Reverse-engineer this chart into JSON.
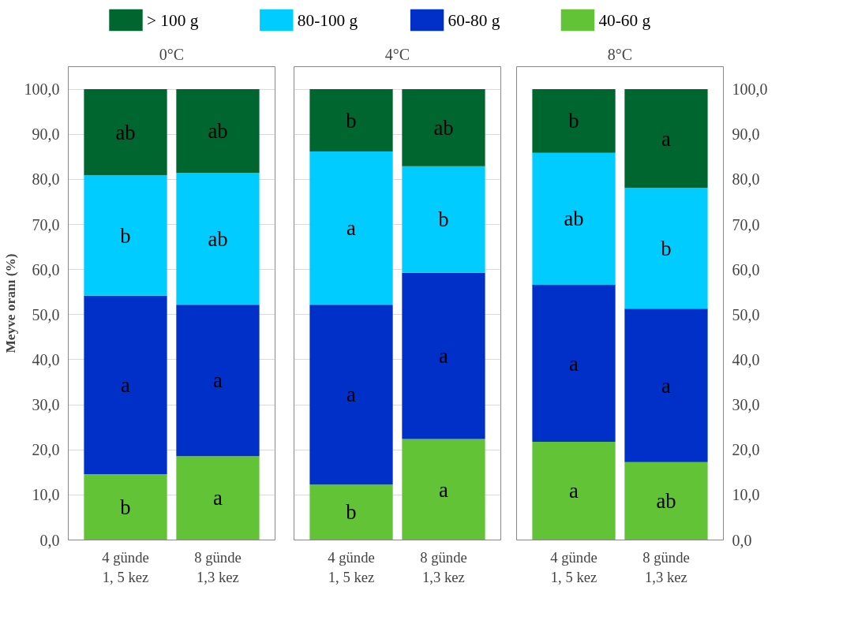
{
  "chart_data": [
    {
      "type": "bar",
      "stacked": true,
      "title": "0°C",
      "ylabel": "Meyve oranı (%)",
      "legend": "top",
      "grid": "y",
      "categories": [
        "4 günde\n1, 5 kez",
        "8 günde\n1,3 kez"
      ],
      "ylim": [
        0,
        105
      ],
      "yticks": [
        {
          "value": 0,
          "label": "0,0"
        },
        {
          "value": 10,
          "label": "10,0"
        },
        {
          "value": 20,
          "label": "20,0"
        },
        {
          "value": 30,
          "label": "30,0"
        },
        {
          "value": 40,
          "label": "40,0"
        },
        {
          "value": 50,
          "label": "50,0"
        },
        {
          "value": 60,
          "label": "60,0"
        },
        {
          "value": 70,
          "label": "70,0"
        },
        {
          "value": 80,
          "label": "80,0"
        },
        {
          "value": 90,
          "label": "90,0"
        },
        {
          "value": 100,
          "label": "100,0"
        }
      ],
      "series": [
        {
          "name": "40-60 g",
          "color": "#62c337",
          "values": [
            14.6,
            18.6
          ],
          "value_labels": [
            "b",
            "a"
          ]
        },
        {
          "name": "60-80 g",
          "color": "#0030c8",
          "values": [
            39.6,
            33.6
          ],
          "value_labels": [
            "a",
            "a"
          ]
        },
        {
          "name": "80-100 g",
          "color": "#00ccff",
          "values": [
            26.7,
            29.2
          ],
          "value_labels": [
            "b",
            "ab"
          ]
        },
        {
          "name": "> 100 g",
          "color": "#00662f",
          "values": [
            19.1,
            18.6
          ],
          "value_labels": [
            "ab",
            "ab"
          ]
        }
      ]
    },
    {
      "type": "bar",
      "stacked": true,
      "title": "4°C",
      "grid": "y",
      "tick_labels": "x",
      "categories": [
        "4 günde\n1, 5 kez",
        "8 günde\n1,3 kez"
      ],
      "ylim": [
        0,
        105
      ],
      "yticks": [
        0,
        10,
        20,
        30,
        40,
        50,
        60,
        70,
        80,
        90,
        100
      ],
      "series": [
        {
          "color": "#62c337",
          "values": [
            12.3,
            22.4
          ],
          "value_labels": [
            "b",
            "a"
          ]
        },
        {
          "color": "#0030c8",
          "values": [
            39.9,
            36.9
          ],
          "value_labels": [
            "a",
            "a"
          ]
        },
        {
          "color": "#00ccff",
          "values": [
            34.0,
            23.6
          ],
          "value_labels": [
            "a",
            "b"
          ]
        },
        {
          "color": "#00662f",
          "values": [
            13.8,
            17.1
          ],
          "value_labels": [
            "b",
            "ab"
          ]
        }
      ]
    },
    {
      "type": "bar",
      "stacked": true,
      "title": "8°C",
      "grid": "y",
      "categories": [
        "4 günde\n1, 5 kez",
        "8 günde\n1,3 kez"
      ],
      "y2lim": [
        0,
        105
      ],
      "y2ticks": [
        {
          "value": 0,
          "label": "0,0"
        },
        {
          "value": 10,
          "label": "10,0"
        },
        {
          "value": 20,
          "label": "20,0"
        },
        {
          "value": 30,
          "label": "30,0"
        },
        {
          "value": 40,
          "label": "40,0"
        },
        {
          "value": 50,
          "label": "50,0"
        },
        {
          "value": 60,
          "label": "60,0"
        },
        {
          "value": 70,
          "label": "70,0"
        },
        {
          "value": 80,
          "label": "80,0"
        },
        {
          "value": 90,
          "label": "90,0"
        },
        {
          "value": 100,
          "label": "100,0"
        }
      ],
      "series": [
        {
          "color": "#62c337",
          "values": [
            21.8,
            17.3
          ],
          "value_labels": [
            "a",
            "ab"
          ],
          "axis": "y2"
        },
        {
          "color": "#0030c8",
          "values": [
            34.8,
            34.0
          ],
          "value_labels": [
            "a",
            "a"
          ],
          "axis": "y2"
        },
        {
          "color": "#00ccff",
          "values": [
            29.3,
            26.8
          ],
          "value_labels": [
            "ab",
            "b"
          ],
          "axis": "y2"
        },
        {
          "color": "#00662f",
          "values": [
            14.1,
            21.9
          ],
          "value_labels": [
            "b",
            "a"
          ],
          "axis": "y2"
        }
      ]
    }
  ]
}
